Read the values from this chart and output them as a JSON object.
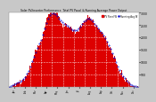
{
  "title": "Solar PV/Inverter Performance  Total PV Panel & Running Average Power Output",
  "bg_color": "#c8c8c8",
  "plot_bg_color": "#ffffff",
  "grid_color": "#ffffff",
  "fill_color": "#dd0000",
  "line_color": "#cc0000",
  "avg_color": "#0000cc",
  "ylim": [
    0,
    3000
  ],
  "yticks": [
    500,
    1000,
    1500,
    2000,
    2500,
    3000
  ],
  "ytick_labels": [
    "500",
    "1000",
    "1500",
    "2000",
    "2500",
    "3000"
  ],
  "n_points": 365,
  "legend_pv": "PV Panel W",
  "legend_avg": "Running Avg W",
  "title_color": "#000000",
  "tick_color": "#000000",
  "legend_pv_color": "#dd0000",
  "legend_avg_color": "#0000cc"
}
